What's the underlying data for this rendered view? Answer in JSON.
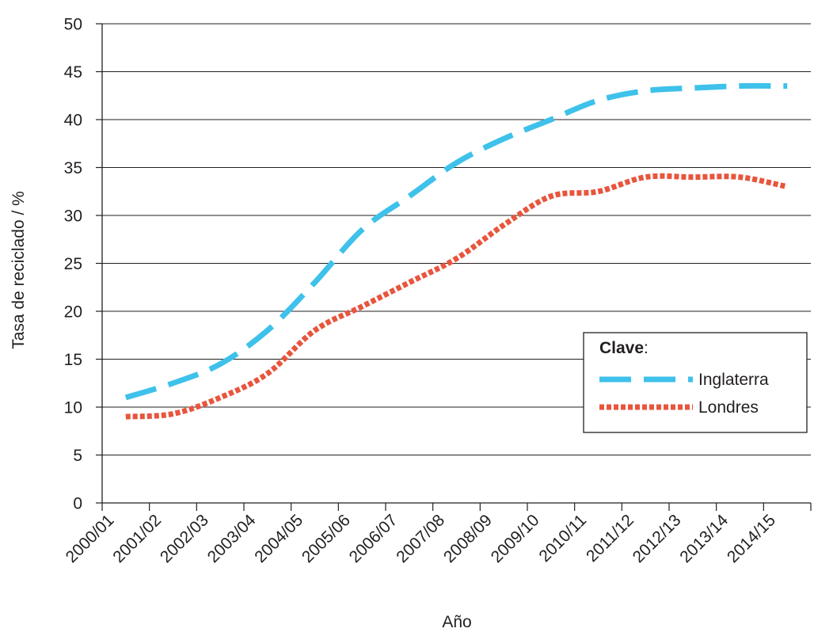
{
  "chart_data": {
    "type": "line",
    "ylabel": "Tasa de reciclado / %",
    "xlabel": "Año",
    "ylim": [
      0,
      50
    ],
    "yticks": [
      0,
      5,
      10,
      15,
      20,
      25,
      30,
      35,
      40,
      45,
      50
    ],
    "grid": "horizontal",
    "categories": [
      "2000/01",
      "2001/02",
      "2002/03",
      "2003/04",
      "2004/05",
      "2005/06",
      "2006/07",
      "2007/08",
      "2008/09",
      "2009/10",
      "2010/11",
      "2011/12",
      "2012/13",
      "2013/14",
      "2014/15"
    ],
    "legend": {
      "title": "Clave",
      "title_suffix": ":",
      "placement": "right"
    },
    "series": [
      {
        "name": "Inglaterra",
        "style": "dashed",
        "color": "#3ec1ea",
        "values": [
          11.0,
          12.5,
          14.5,
          18.0,
          23.0,
          28.5,
          32.0,
          35.5,
          38.0,
          40.0,
          42.0,
          43.0,
          43.3,
          43.5,
          43.5
        ]
      },
      {
        "name": "Londres",
        "style": "dotted",
        "color": "#e8553d",
        "values": [
          9.0,
          9.3,
          11.0,
          13.5,
          18.0,
          20.5,
          23.0,
          25.5,
          29.0,
          32.0,
          32.5,
          34.0,
          34.0,
          34.0,
          33.0
        ]
      }
    ]
  }
}
